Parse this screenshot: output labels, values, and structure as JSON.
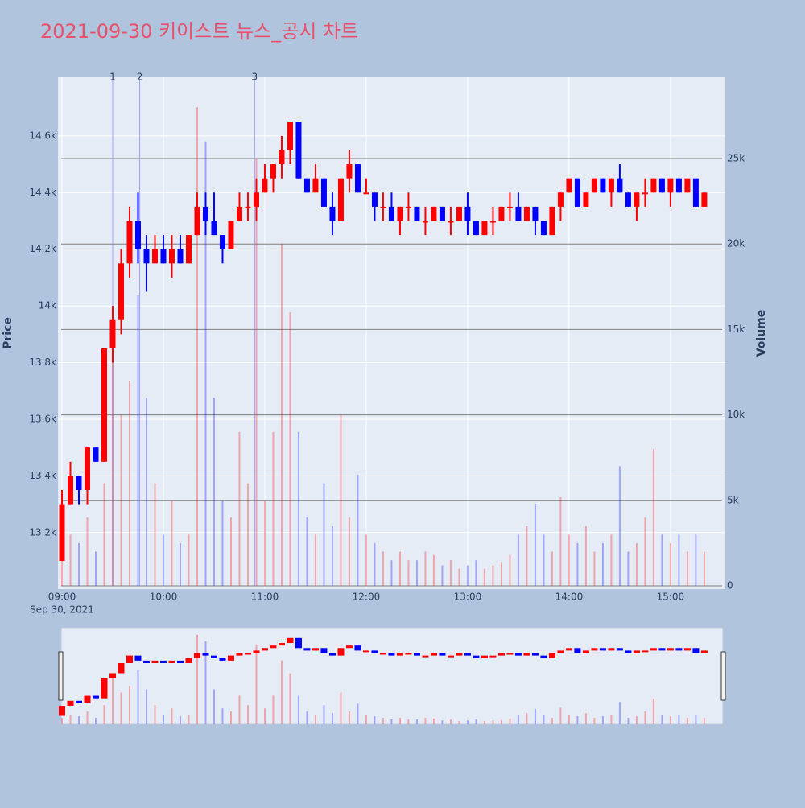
{
  "chart_data": {
    "type": "candlestick",
    "title": "2021-09-30 키이스트 뉴스_공시 차트",
    "ylabel": "Price",
    "y2label": "Volume",
    "x_date_label": "Sep 30, 2021",
    "increasing_color": "#ff0000",
    "decreasing_color": "#0000ff",
    "x": [
      "09:00",
      "09:05",
      "09:10",
      "09:15",
      "09:20",
      "09:25",
      "09:30",
      "09:35",
      "09:40",
      "09:45",
      "09:50",
      "09:55",
      "10:00",
      "10:05",
      "10:10",
      "10:15",
      "10:20",
      "10:25",
      "10:30",
      "10:35",
      "10:40",
      "10:45",
      "10:50",
      "10:55",
      "11:00",
      "11:05",
      "11:10",
      "11:15",
      "11:20",
      "11:25",
      "11:30",
      "11:35",
      "11:40",
      "11:45",
      "11:50",
      "11:55",
      "12:00",
      "12:05",
      "12:10",
      "12:15",
      "12:20",
      "12:25",
      "12:30",
      "12:35",
      "12:40",
      "12:45",
      "12:50",
      "12:55",
      "13:00",
      "13:05",
      "13:10",
      "13:15",
      "13:20",
      "13:25",
      "13:30",
      "13:35",
      "13:40",
      "13:45",
      "13:50",
      "13:55",
      "14:00",
      "14:05",
      "14:10",
      "14:15",
      "14:20",
      "14:25",
      "14:30",
      "14:35",
      "14:40",
      "14:45",
      "14:50",
      "14:55",
      "15:00",
      "15:05",
      "15:10",
      "15:15",
      "15:20"
    ],
    "open": [
      13100,
      13300,
      13400,
      13350,
      13500,
      13450,
      13850,
      13950,
      14150,
      14300,
      14200,
      14150,
      14200,
      14150,
      14200,
      14150,
      14250,
      14350,
      14300,
      14250,
      14200,
      14300,
      14350,
      14350,
      14400,
      14450,
      14500,
      14550,
      14650,
      14450,
      14400,
      14450,
      14350,
      14300,
      14450,
      14500,
      14400,
      14400,
      14350,
      14350,
      14300,
      14350,
      14350,
      14300,
      14300,
      14350,
      14300,
      14300,
      14350,
      14300,
      14250,
      14300,
      14300,
      14350,
      14350,
      14300,
      14350,
      14300,
      14250,
      14350,
      14400,
      14450,
      14350,
      14400,
      14450,
      14400,
      14450,
      14400,
      14350,
      14400,
      14400,
      14450,
      14400,
      14450,
      14400,
      14450,
      14350
    ],
    "high": [
      13350,
      13450,
      13400,
      13500,
      13500,
      13850,
      14000,
      14200,
      14350,
      14400,
      14250,
      14250,
      14250,
      14250,
      14250,
      14250,
      14400,
      14400,
      14400,
      14250,
      14300,
      14400,
      14400,
      14450,
      14500,
      14500,
      14600,
      14650,
      14650,
      14450,
      14500,
      14450,
      14400,
      14450,
      14550,
      14500,
      14450,
      14400,
      14400,
      14400,
      14350,
      14400,
      14350,
      14350,
      14350,
      14350,
      14350,
      14350,
      14400,
      14300,
      14300,
      14350,
      14350,
      14400,
      14400,
      14350,
      14350,
      14300,
      14350,
      14400,
      14450,
      14450,
      14400,
      14450,
      14450,
      14450,
      14500,
      14400,
      14400,
      14450,
      14450,
      14450,
      14450,
      14450,
      14450,
      14450,
      14400
    ],
    "low": [
      13100,
      13300,
      13300,
      13300,
      13450,
      13450,
      13800,
      13900,
      14100,
      14150,
      14050,
      14150,
      14150,
      14100,
      14150,
      14150,
      14250,
      14250,
      14250,
      14150,
      14200,
      14300,
      14300,
      14300,
      14400,
      14400,
      14450,
      14500,
      14450,
      14400,
      14400,
      14350,
      14250,
      14300,
      14400,
      14400,
      14400,
      14300,
      14300,
      14300,
      14250,
      14300,
      14300,
      14250,
      14300,
      14300,
      14250,
      14300,
      14250,
      14250,
      14250,
      14250,
      14300,
      14300,
      14300,
      14300,
      14250,
      14250,
      14250,
      14300,
      14400,
      14350,
      14350,
      14400,
      14400,
      14350,
      14400,
      14350,
      14300,
      14350,
      14400,
      14400,
      14350,
      14400,
      14400,
      14350,
      14350
    ],
    "close": [
      13300,
      13400,
      13350,
      13500,
      13450,
      13850,
      13950,
      14150,
      14300,
      14200,
      14150,
      14200,
      14150,
      14200,
      14150,
      14250,
      14350,
      14300,
      14250,
      14200,
      14300,
      14350,
      14350,
      14400,
      14450,
      14500,
      14550,
      14650,
      14450,
      14400,
      14450,
      14350,
      14300,
      14450,
      14500,
      14400,
      14400,
      14350,
      14350,
      14300,
      14350,
      14350,
      14300,
      14300,
      14350,
      14300,
      14300,
      14350,
      14300,
      14250,
      14300,
      14300,
      14350,
      14350,
      14300,
      14350,
      14300,
      14250,
      14350,
      14400,
      14450,
      14350,
      14400,
      14450,
      14400,
      14450,
      14400,
      14350,
      14400,
      14400,
      14450,
      14400,
      14450,
      14400,
      14450,
      14350,
      14400
    ],
    "volume": [
      2000,
      3000,
      2500,
      4000,
      2000,
      6000,
      16000,
      10000,
      12000,
      17000,
      11000,
      6000,
      3000,
      5000,
      2500,
      3000,
      28000,
      26000,
      11000,
      5000,
      4000,
      9000,
      6000,
      25000,
      5000,
      9000,
      20000,
      16000,
      9000,
      4000,
      3000,
      6000,
      3500,
      10000,
      4000,
      6500,
      3000,
      2500,
      2000,
      1500,
      2000,
      1500,
      1500,
      2000,
      1800,
      1200,
      1500,
      1000,
      1200,
      1500,
      1000,
      1200,
      1400,
      1800,
      3000,
      3500,
      4800,
      3000,
      2000,
      5200,
      3000,
      2500,
      3500,
      2000,
      2500,
      3000,
      7000,
      2000,
      2500,
      4000,
      8000,
      3000,
      2500,
      3000,
      2000,
      3000,
      2000
    ],
    "xlim": [
      "09:00",
      "15:31"
    ],
    "xticks": [
      "09:00",
      "10:00",
      "11:00",
      "12:00",
      "13:00",
      "14:00",
      "15:00"
    ],
    "ylim": [
      13012,
      14807
    ],
    "yticks": [
      {
        "value": 13200,
        "label": "13.2k"
      },
      {
        "value": 13400,
        "label": "13.4k"
      },
      {
        "value": 13600,
        "label": "13.6k"
      },
      {
        "value": 13800,
        "label": "13.8k"
      },
      {
        "value": 14000,
        "label": "14k"
      },
      {
        "value": 14200,
        "label": "14.2k"
      },
      {
        "value": 14400,
        "label": "14.4k"
      },
      {
        "value": 14600,
        "label": "14.6k"
      }
    ],
    "y2lim": [
      0,
      29755
    ],
    "y2ticks": [
      0,
      {
        "value": 5000,
        "label": "5k"
      },
      {
        "value": 10000,
        "label": "10k"
      },
      {
        "value": 15000,
        "label": "15k"
      },
      {
        "value": 20000,
        "label": "20k"
      },
      {
        "value": 25000,
        "label": "25k"
      }
    ],
    "annotations": [
      {
        "text": "1",
        "x": "09:30"
      },
      {
        "text": "2",
        "x": "09:46"
      },
      {
        "text": "3",
        "x": "10:54"
      }
    ],
    "grid": true
  }
}
